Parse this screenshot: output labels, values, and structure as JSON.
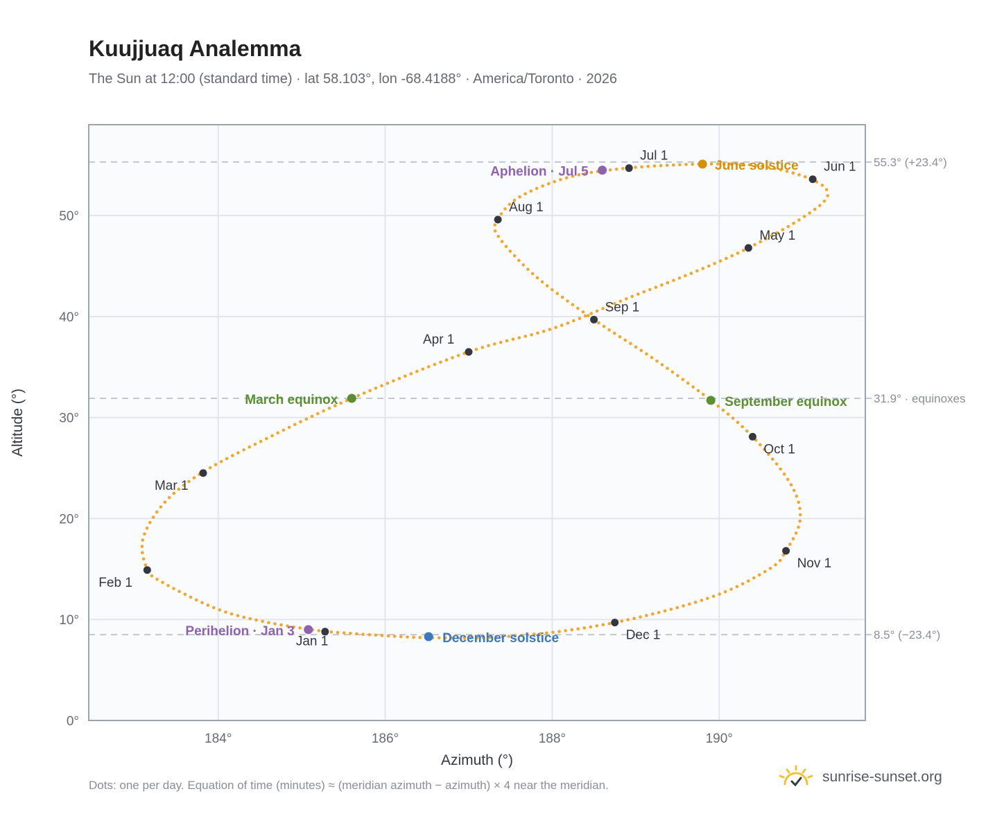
{
  "chart_data": {
    "type": "scatter",
    "title": "Kuujjuaq Analemma",
    "subtitle": "The Sun at 12:00 (standard time) · lat 58.103°, lon -68.4188° · America/Toronto · 2026",
    "xlabel": "Azimuth (°)",
    "ylabel": "Altitude (°)",
    "xlim": [
      182.45,
      191.75
    ],
    "ylim": [
      0,
      59
    ],
    "xticks": [
      184,
      186,
      188,
      190
    ],
    "yticks": [
      0,
      10,
      20,
      30,
      40,
      50
    ],
    "x_tick_labels": [
      "184°",
      "186°",
      "188°",
      "190°"
    ],
    "y_tick_labels": [
      "0°",
      "10°",
      "20°",
      "30°",
      "40°",
      "50°"
    ],
    "grid": true,
    "reference_lines": [
      {
        "y": 55.3,
        "label": "55.3° (+23.4°)"
      },
      {
        "y": 31.9,
        "label": "31.9° · equinoxes"
      },
      {
        "y": 8.5,
        "label": "8.5° (−23.4°)"
      }
    ],
    "analemma_path": [
      [
        185.28,
        8.8
      ],
      [
        186.5,
        8.2
      ],
      [
        187.6,
        8.4
      ],
      [
        188.75,
        9.7
      ],
      [
        189.9,
        12.2
      ],
      [
        190.6,
        15.0
      ],
      [
        190.8,
        16.8
      ],
      [
        190.97,
        20.0
      ],
      [
        190.85,
        23.5
      ],
      [
        190.4,
        28.1
      ],
      [
        189.9,
        31.7
      ],
      [
        189.2,
        35.9
      ],
      [
        188.5,
        39.7
      ],
      [
        187.8,
        44.0
      ],
      [
        187.35,
        48.0
      ],
      [
        187.35,
        49.6
      ],
      [
        187.6,
        51.8
      ],
      [
        188.2,
        53.8
      ],
      [
        188.9,
        54.7
      ],
      [
        189.8,
        55.1
      ],
      [
        190.5,
        54.9
      ],
      [
        191.1,
        53.6
      ],
      [
        191.3,
        52.0
      ],
      [
        191.0,
        49.8
      ],
      [
        190.35,
        46.8
      ],
      [
        189.7,
        44.4
      ],
      [
        188.9,
        41.8
      ],
      [
        188.0,
        38.8
      ],
      [
        187.0,
        36.5
      ],
      [
        185.6,
        31.9
      ],
      [
        184.55,
        27.8
      ],
      [
        183.8,
        24.5
      ],
      [
        183.35,
        21.5
      ],
      [
        183.1,
        18.0
      ],
      [
        183.15,
        15.0
      ],
      [
        183.35,
        13.6
      ],
      [
        184.0,
        11.0
      ],
      [
        184.6,
        9.7
      ],
      [
        185.28,
        8.8
      ]
    ],
    "month_markers": [
      {
        "label": "Jan 1",
        "x": 185.28,
        "y": 8.8
      },
      {
        "label": "Feb 1",
        "x": 183.15,
        "y": 14.9
      },
      {
        "label": "Mar 1",
        "x": 183.82,
        "y": 24.5
      },
      {
        "label": "Apr 1",
        "x": 187.0,
        "y": 36.5
      },
      {
        "label": "May 1",
        "x": 190.35,
        "y": 46.8
      },
      {
        "label": "Jun 1",
        "x": 191.12,
        "y": 53.6
      },
      {
        "label": "Jul 1",
        "x": 188.92,
        "y": 54.7
      },
      {
        "label": "Aug 1",
        "x": 187.35,
        "y": 49.6
      },
      {
        "label": "Sep 1",
        "x": 188.5,
        "y": 39.7
      },
      {
        "label": "Oct 1",
        "x": 190.4,
        "y": 28.1
      },
      {
        "label": "Nov 1",
        "x": 190.8,
        "y": 16.8
      },
      {
        "label": "Dec 1",
        "x": 188.75,
        "y": 9.7
      }
    ],
    "events": [
      {
        "label": "June solstice",
        "x": 189.8,
        "y": 55.1,
        "color": "#d4900a"
      },
      {
        "label": "Aphelion · Jul 5",
        "x": 188.6,
        "y": 54.5,
        "color": "#8e62b0"
      },
      {
        "label": "March equinox",
        "x": 185.6,
        "y": 31.9,
        "color": "#5a8f32"
      },
      {
        "label": "September equinox",
        "x": 189.9,
        "y": 31.7,
        "color": "#5a8f32"
      },
      {
        "label": "Perihelion · Jan 3",
        "x": 185.08,
        "y": 9.0,
        "color": "#8e62b0"
      },
      {
        "label": "December solstice",
        "x": 186.52,
        "y": 8.3,
        "color": "#3a78c0"
      }
    ]
  },
  "footnote": "Dots: one per day. Equation of time (minutes) ≈ (meridian azimuth − azimuth) × 4 near the meridian.",
  "brand": {
    "name": "sunrise-sunset.org",
    "icon": "sun-logo-icon"
  },
  "colors": {
    "path": "#f2a62a",
    "marker": "#333840",
    "grid": "#e2e6ec",
    "plot_bg": "#fafbfd",
    "frame": "#9aa3b0",
    "refline": "#c2c7ce"
  }
}
